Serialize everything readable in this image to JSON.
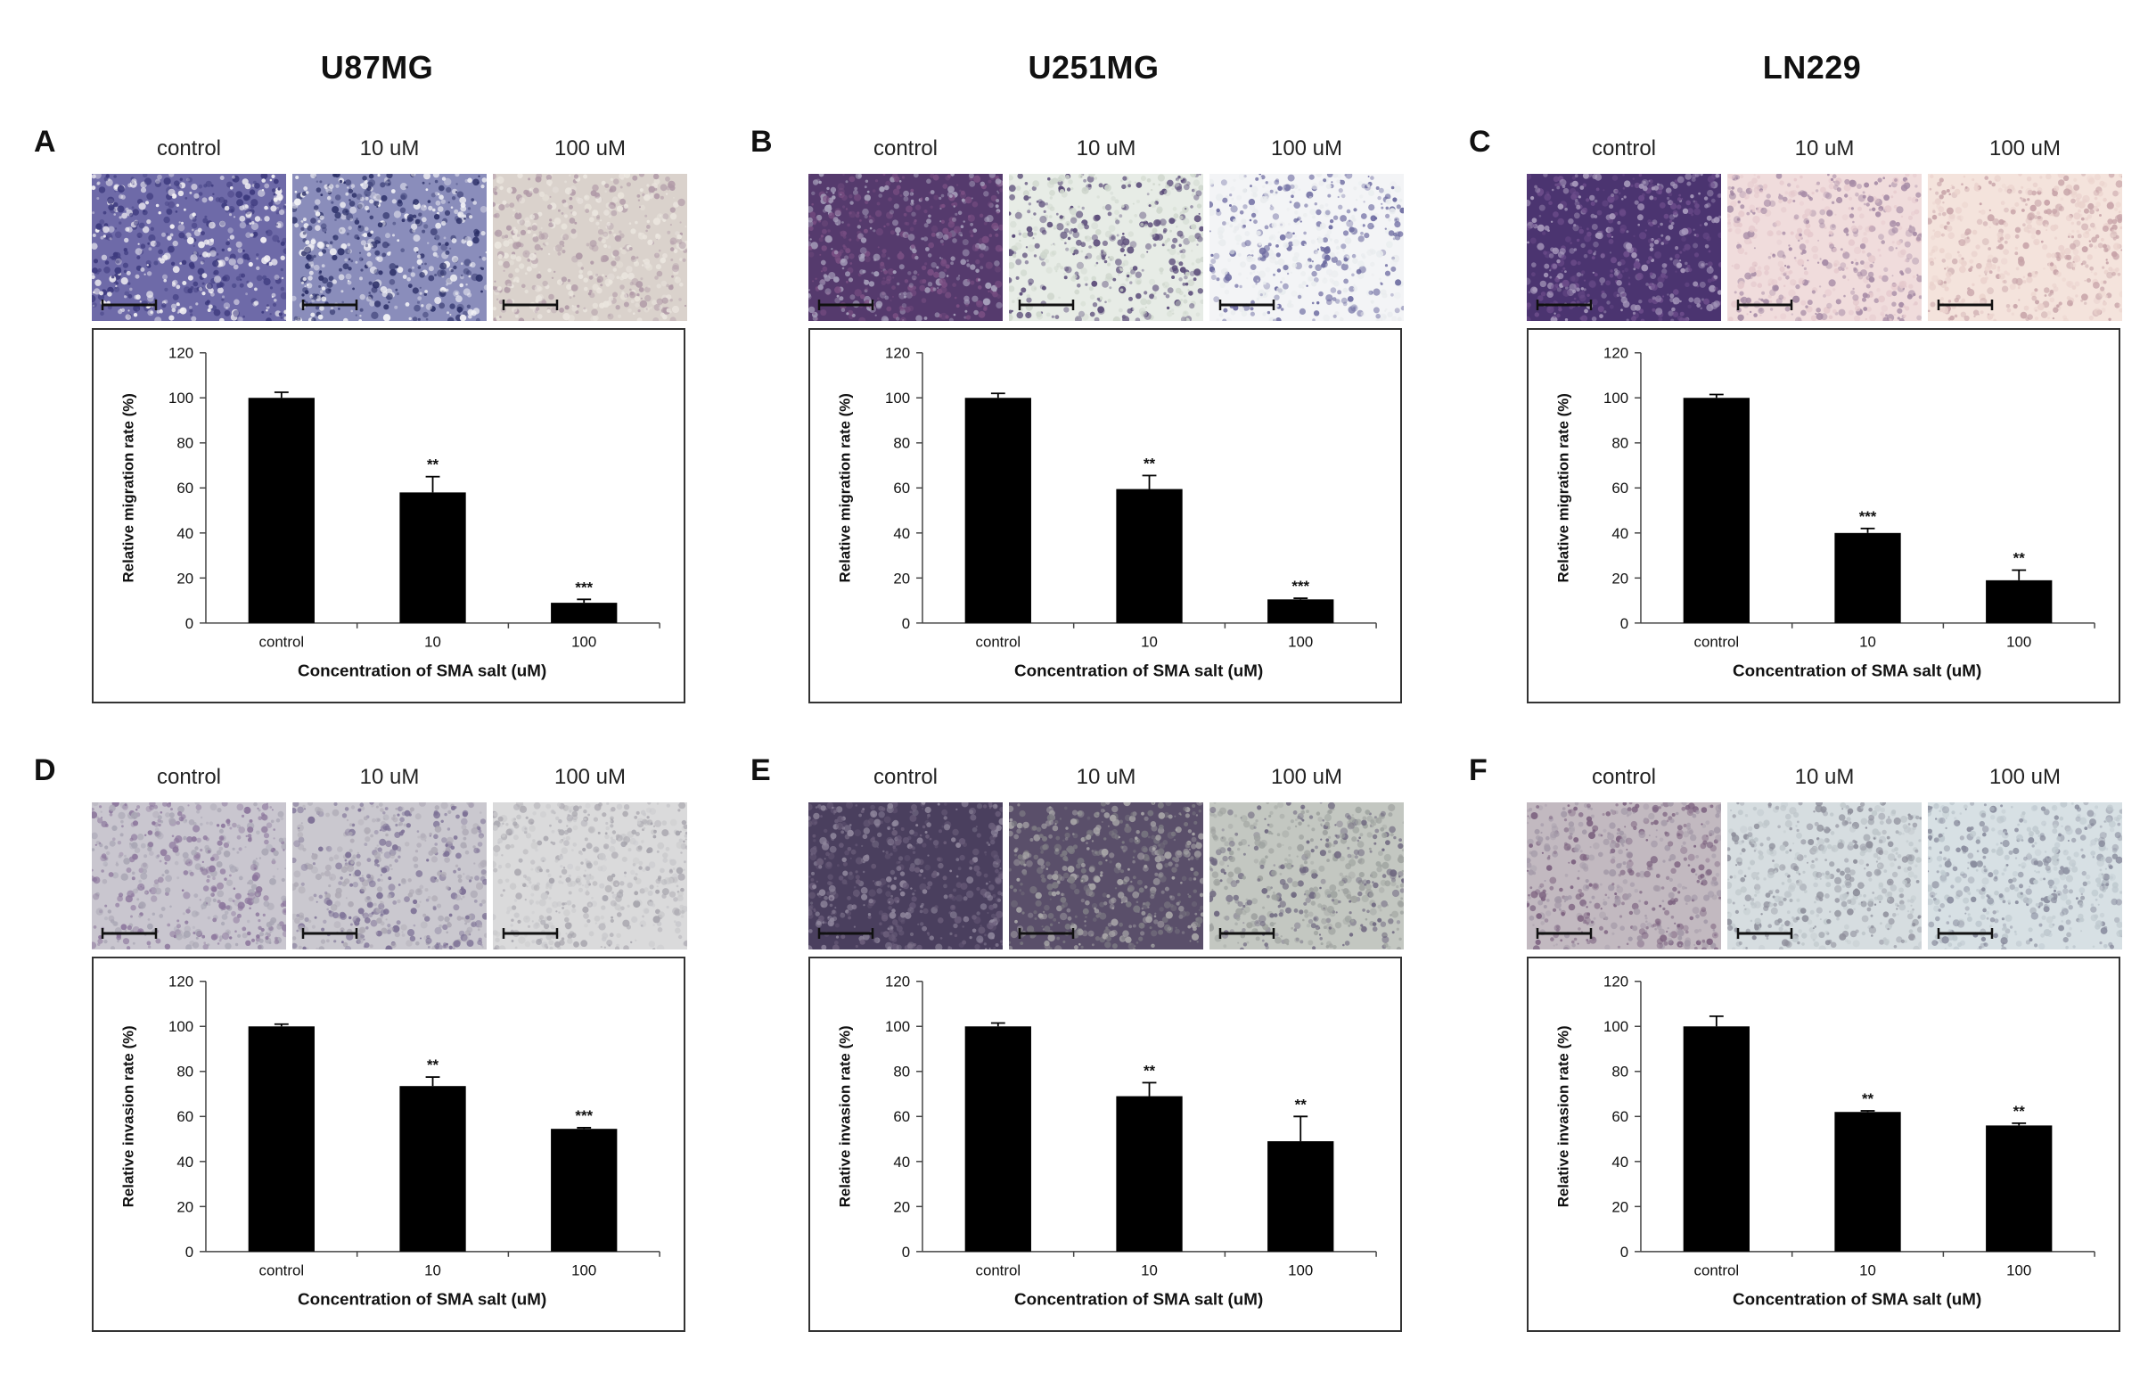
{
  "columns": [
    {
      "title": "U87MG"
    },
    {
      "title": "U251MG"
    },
    {
      "title": "LN229"
    }
  ],
  "image_labels": [
    "control",
    "10 uM",
    "100 uM"
  ],
  "panels": [
    {
      "letter": "A",
      "col": 0,
      "row": 0,
      "micro_palettes": [
        [
          "#3d3a7e",
          "#f3f1f4",
          "#6e6aa8"
        ],
        [
          "#f2f2f6",
          "#2c3068",
          "#8a8dbb"
        ],
        [
          "#ebe6df",
          "#b09aa7",
          "#dad2cc"
        ]
      ]
    },
    {
      "letter": "B",
      "col": 1,
      "row": 0,
      "micro_palettes": [
        [
          "#7a4f83",
          "#a7a0bb",
          "#553a6d"
        ],
        [
          "#cfd7cd",
          "#5a4b78",
          "#e7ece6"
        ],
        [
          "#e9ecee",
          "#6c6aa0",
          "#f3f4f6"
        ]
      ]
    },
    {
      "letter": "C",
      "col": 2,
      "row": 0,
      "micro_palettes": [
        [
          "#6c4c8a",
          "#a99bbd",
          "#4b3470"
        ],
        [
          "#e5c9cd",
          "#a58aa5",
          "#f0dcdc"
        ],
        [
          "#ead2cd",
          "#c7a3a8",
          "#f4e3dc"
        ]
      ]
    },
    {
      "letter": "D",
      "col": 0,
      "row": 1,
      "micro_palettes": [
        [
          "#a9a6b4",
          "#8c769c",
          "#c9c6cf"
        ],
        [
          "#aeaab5",
          "#7c7095",
          "#cac8cf"
        ],
        [
          "#c9c9cc",
          "#a7a5ad",
          "#dadadb"
        ]
      ]
    },
    {
      "letter": "E",
      "col": 1,
      "row": 1,
      "micro_palettes": [
        [
          "#6a5d7a",
          "#8f869c",
          "#4a3f5e"
        ],
        [
          "#7d7b83",
          "#a8a6a8",
          "#5a4f6a"
        ],
        [
          "#9fa3a0",
          "#6f6880",
          "#c3c7c1"
        ]
      ]
    },
    {
      "letter": "F",
      "col": 2,
      "row": 1,
      "micro_palettes": [
        [
          "#a49aa8",
          "#7c627f",
          "#c2b9c0"
        ],
        [
          "#bfc7cb",
          "#8e8f9b",
          "#d6dde0"
        ],
        [
          "#bfc9cf",
          "#8a8d9e",
          "#d7e0e4"
        ]
      ]
    }
  ],
  "chart_data": [
    {
      "type": "bar",
      "panel": "A",
      "categories": [
        "control",
        "10",
        "100"
      ],
      "values": [
        100,
        58,
        9
      ],
      "errors": [
        2.5,
        7,
        1.5
      ],
      "significance": [
        "",
        "**",
        "***"
      ],
      "xlabel": "Concentration of SMA salt (uM)",
      "ylabel": "Relative migration rate (%)",
      "ylim": [
        0,
        120
      ],
      "yticks": [
        "0",
        "20",
        "40",
        "60",
        "80",
        "100",
        "120"
      ]
    },
    {
      "type": "bar",
      "panel": "B",
      "categories": [
        "control",
        "10",
        "100"
      ],
      "values": [
        100,
        59.5,
        10.5
      ],
      "errors": [
        2,
        6,
        0.5
      ],
      "significance": [
        "",
        "**",
        "***"
      ],
      "xlabel": "Concentration of SMA salt (uM)",
      "ylabel": "Relative migration rate (%)",
      "ylim": [
        0,
        120
      ],
      "yticks": [
        "0",
        "20",
        "40",
        "60",
        "80",
        "100",
        "120"
      ]
    },
    {
      "type": "bar",
      "panel": "C",
      "categories": [
        "control",
        "10",
        "100"
      ],
      "values": [
        100,
        40,
        19
      ],
      "errors": [
        1.5,
        2,
        4.5
      ],
      "significance": [
        "",
        "***",
        "**"
      ],
      "xlabel": "Concentration of SMA salt (uM)",
      "ylabel": "Relative migration rate (%)",
      "ylim": [
        0,
        120
      ],
      "yticks": [
        "0",
        "20",
        "40",
        "60",
        "80",
        "100",
        "120"
      ]
    },
    {
      "type": "bar",
      "panel": "D",
      "categories": [
        "control",
        "10",
        "100"
      ],
      "values": [
        100,
        73.5,
        54.5
      ],
      "errors": [
        1,
        4,
        0.5
      ],
      "significance": [
        "",
        "**",
        "***"
      ],
      "xlabel": "Concentration of SMA salt (uM)",
      "ylabel": "Relative invasion rate (%)",
      "ylim": [
        0,
        120
      ],
      "yticks": [
        "0",
        "20",
        "40",
        "60",
        "80",
        "100",
        "120"
      ]
    },
    {
      "type": "bar",
      "panel": "E",
      "categories": [
        "control",
        "10",
        "100"
      ],
      "values": [
        100,
        69,
        49
      ],
      "errors": [
        1.5,
        6,
        11
      ],
      "significance": [
        "",
        "**",
        "**"
      ],
      "xlabel": "Concentration of SMA salt (uM)",
      "ylabel": "Relative invasion rate (%)",
      "ylim": [
        0,
        120
      ],
      "yticks": [
        "0",
        "20",
        "40",
        "60",
        "80",
        "100",
        "120"
      ]
    },
    {
      "type": "bar",
      "panel": "F",
      "categories": [
        "control",
        "10",
        "100"
      ],
      "values": [
        100,
        62,
        56
      ],
      "errors": [
        4.5,
        0.5,
        1
      ],
      "significance": [
        "",
        "**",
        "**"
      ],
      "xlabel": "Concentration of SMA salt (uM)",
      "ylabel": "Relative invasion rate (%)",
      "ylim": [
        0,
        120
      ],
      "yticks": [
        "0",
        "20",
        "40",
        "60",
        "80",
        "100",
        "120"
      ]
    }
  ]
}
